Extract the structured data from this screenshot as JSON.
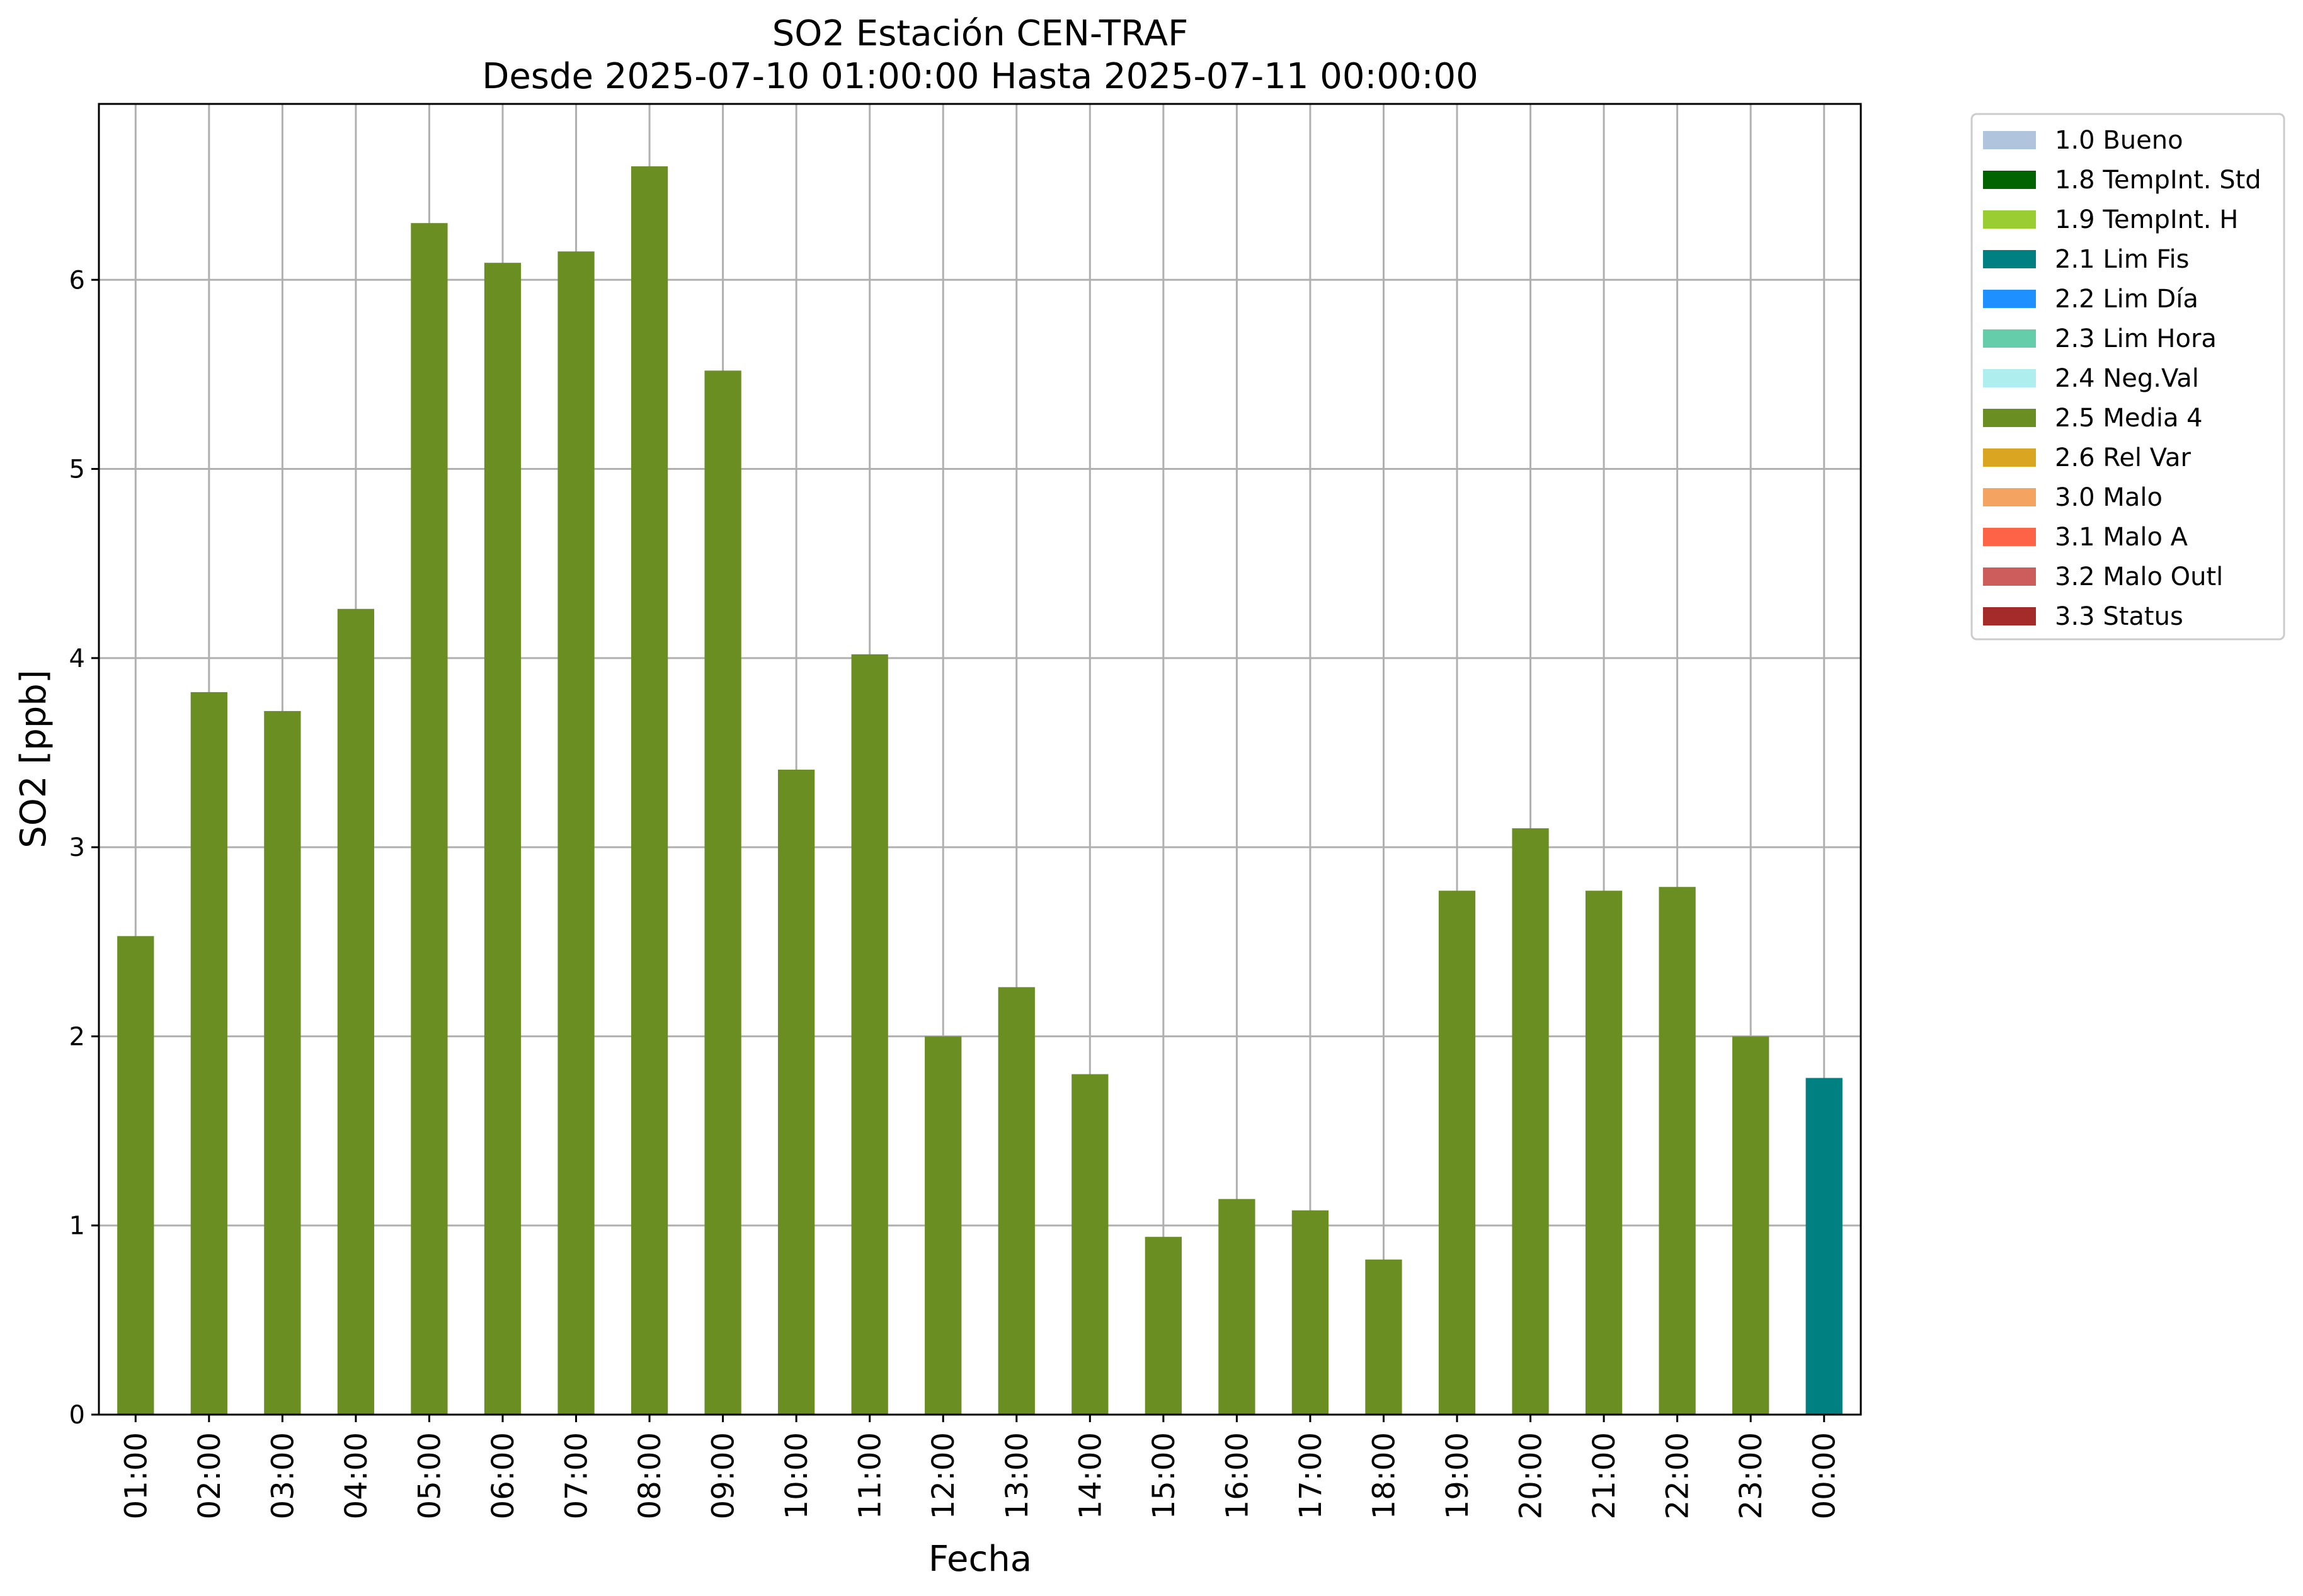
{
  "chart_data": {
    "type": "bar",
    "title": "SO2 Estación CEN-TRAF",
    "subtitle": "Desde 2025-07-10 01:00:00 Hasta 2025-07-11 00:00:00",
    "xlabel": "Fecha",
    "ylabel": "SO2 [ppb]",
    "ylim": [
      0,
      6.93
    ],
    "yticks": [
      "0",
      "1",
      "2",
      "3",
      "4",
      "5",
      "6"
    ],
    "grid": true,
    "legend_position": "outside-top-right",
    "categories": [
      "01:00",
      "02:00",
      "03:00",
      "04:00",
      "05:00",
      "06:00",
      "07:00",
      "08:00",
      "09:00",
      "10:00",
      "11:00",
      "12:00",
      "13:00",
      "14:00",
      "15:00",
      "16:00",
      "17:00",
      "18:00",
      "19:00",
      "20:00",
      "21:00",
      "22:00",
      "23:00",
      "00:00"
    ],
    "values": [
      2.53,
      3.82,
      3.72,
      4.26,
      6.3,
      6.09,
      6.15,
      6.6,
      5.52,
      3.41,
      4.02,
      2.0,
      2.26,
      1.8,
      0.94,
      1.14,
      1.08,
      0.82,
      2.77,
      3.1,
      2.77,
      2.79,
      2.0,
      1.78
    ],
    "flags": [
      "2.5 Media 4",
      "2.5 Media 4",
      "2.5 Media 4",
      "2.5 Media 4",
      "2.5 Media 4",
      "2.5 Media 4",
      "2.5 Media 4",
      "2.5 Media 4",
      "2.5 Media 4",
      "2.5 Media 4",
      "2.5 Media 4",
      "2.5 Media 4",
      "2.5 Media 4",
      "2.5 Media 4",
      "2.5 Media 4",
      "2.5 Media 4",
      "2.5 Media 4",
      "2.5 Media 4",
      "2.5 Media 4",
      "2.5 Media 4",
      "2.5 Media 4",
      "2.5 Media 4",
      "2.5 Media 4",
      "2.1 Lim Fis"
    ],
    "legend": [
      {
        "label": "1.0 Bueno",
        "color": "#b0c4de"
      },
      {
        "label": "1.8 TempInt. Std",
        "color": "#006400"
      },
      {
        "label": "1.9 TempInt. H",
        "color": "#9acd32"
      },
      {
        "label": "2.1 Lim Fis",
        "color": "#008080"
      },
      {
        "label": "2.2 Lim Día",
        "color": "#1e90ff"
      },
      {
        "label": "2.3 Lim Hora",
        "color": "#66cdaa"
      },
      {
        "label": "2.4 Neg.Val",
        "color": "#afeeee"
      },
      {
        "label": "2.5 Media 4",
        "color": "#6b8e23"
      },
      {
        "label": "2.6 Rel Var",
        "color": "#daa520"
      },
      {
        "label": "3.0 Malo",
        "color": "#f4a460"
      },
      {
        "label": "3.1 Malo A",
        "color": "#ff6347"
      },
      {
        "label": "3.2 Malo Outl",
        "color": "#cd5c5c"
      },
      {
        "label": "3.3 Status",
        "color": "#a52a2a"
      }
    ]
  }
}
